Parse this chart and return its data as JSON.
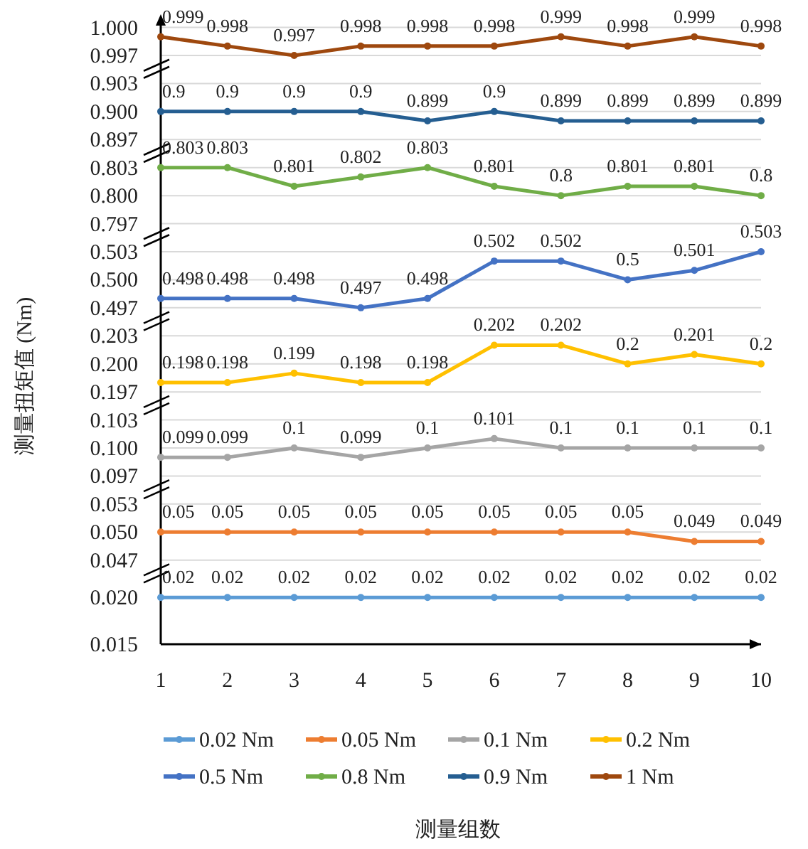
{
  "chart_data": [
    {
      "type": "line",
      "x": [
        1,
        2,
        3,
        4,
        5,
        6,
        7,
        8,
        9,
        10
      ],
      "xlim": [
        1,
        10
      ],
      "ylim": [
        0.9955,
        1.0005
      ],
      "yticks": [
        0.997,
        {
          "value": 1.0,
          "label": "1.000"
        }
      ],
      "grid": "y",
      "marker": "circle",
      "data_labels": true,
      "legend": "bottom",
      "tick_labels": "y",
      "series": [
        {
          "name": "1 Nm",
          "color": "#9e480e",
          "values": [
            0.999,
            0.998,
            0.997,
            0.998,
            0.998,
            0.998,
            0.999,
            0.998,
            0.999,
            0.998
          ]
        }
      ]
    },
    {
      "type": "line",
      "x": [
        1,
        2,
        3,
        4,
        5,
        6,
        7,
        8,
        9,
        10
      ],
      "xlim": [
        1,
        10
      ],
      "ylim": [
        0.8955,
        0.9045
      ],
      "yticks": [
        0.897,
        {
          "value": 0.9,
          "label": "0.900"
        },
        0.903
      ],
      "grid": "y",
      "marker": "circle",
      "data_labels": true,
      "legend": "bottom",
      "tick_labels": "y",
      "series": [
        {
          "name": "0.9 Nm",
          "color": "#255e91",
          "values": [
            0.9,
            0.9,
            0.9,
            0.9,
            0.899,
            0.9,
            0.899,
            0.899,
            0.899,
            0.899
          ]
        }
      ]
    },
    {
      "type": "line",
      "x": [
        1,
        2,
        3,
        4,
        5,
        6,
        7,
        8,
        9,
        10
      ],
      "xlim": [
        1,
        10
      ],
      "ylim": [
        0.7955,
        0.8045
      ],
      "yticks": [
        0.797,
        {
          "value": 0.8,
          "label": "0.800"
        },
        0.803
      ],
      "grid": "y",
      "marker": "circle",
      "data_labels": true,
      "legend": "bottom",
      "tick_labels": "y",
      "series": [
        {
          "name": "0.8 Nm",
          "color": "#70ad47",
          "values": [
            0.803,
            0.803,
            0.801,
            0.802,
            0.803,
            0.801,
            0.8,
            0.801,
            0.801,
            0.8
          ]
        }
      ]
    },
    {
      "type": "line",
      "x": [
        1,
        2,
        3,
        4,
        5,
        6,
        7,
        8,
        9,
        10
      ],
      "xlim": [
        1,
        10
      ],
      "ylim": [
        0.4955,
        0.5045
      ],
      "yticks": [
        0.497,
        {
          "value": 0.5,
          "label": "0.500"
        },
        0.503
      ],
      "grid": "y",
      "marker": "circle",
      "data_labels": true,
      "legend": "bottom",
      "tick_labels": "y",
      "ylabel": "测量扭矩值 (Nm)",
      "series": [
        {
          "name": "0.5 Nm",
          "color": "#4472c4",
          "values": [
            0.498,
            0.498,
            0.498,
            0.497,
            0.498,
            0.502,
            0.502,
            0.5,
            0.501,
            0.503
          ]
        }
      ]
    },
    {
      "type": "line",
      "x": [
        1,
        2,
        3,
        4,
        5,
        6,
        7,
        8,
        9,
        10
      ],
      "xlim": [
        1,
        10
      ],
      "ylim": [
        0.1955,
        0.2045
      ],
      "yticks": [
        0.197,
        {
          "value": 0.2,
          "label": "0.200"
        },
        0.203
      ],
      "grid": "y",
      "marker": "circle",
      "data_labels": true,
      "legend": "bottom",
      "tick_labels": "y",
      "series": [
        {
          "name": "0.2 Nm",
          "color": "#ffc000",
          "values": [
            0.198,
            0.198,
            0.199,
            0.198,
            0.198,
            0.202,
            0.202,
            0.2,
            0.201,
            0.2
          ]
        }
      ]
    },
    {
      "type": "line",
      "x": [
        1,
        2,
        3,
        4,
        5,
        6,
        7,
        8,
        9,
        10
      ],
      "xlim": [
        1,
        10
      ],
      "ylim": [
        0.0955,
        0.1045
      ],
      "yticks": [
        0.097,
        {
          "value": 0.1,
          "label": "0.100"
        },
        0.103
      ],
      "grid": "y",
      "marker": "circle",
      "data_labels": true,
      "legend": "bottom",
      "tick_labels": "y",
      "series": [
        {
          "name": "0.1 Nm",
          "color": "#a5a5a5",
          "values": [
            0.099,
            0.099,
            0.1,
            0.099,
            0.1,
            0.101,
            0.1,
            0.1,
            0.1,
            0.1
          ]
        }
      ]
    },
    {
      "type": "line",
      "x": [
        1,
        2,
        3,
        4,
        5,
        6,
        7,
        8,
        9,
        10
      ],
      "xlim": [
        1,
        10
      ],
      "ylim": [
        0.0455,
        0.0545
      ],
      "yticks": [
        0.047,
        {
          "value": 0.05,
          "label": "0.050"
        },
        0.053
      ],
      "grid": "y",
      "marker": "circle",
      "data_labels": true,
      "legend": "bottom",
      "tick_labels": "y",
      "series": [
        {
          "name": "0.05 Nm",
          "color": "#ed7d31",
          "values": [
            0.05,
            0.05,
            0.05,
            0.05,
            0.05,
            0.05,
            0.05,
            0.05,
            0.049,
            0.049
          ]
        }
      ]
    },
    {
      "type": "line",
      "x": [
        1,
        2,
        3,
        4,
        5,
        6,
        7,
        8,
        9,
        10
      ],
      "xlim": [
        1,
        10
      ],
      "xticks": [
        1,
        2,
        3,
        4,
        5,
        6,
        7,
        8,
        9,
        10
      ],
      "ylim": [
        0.015,
        0.0225
      ],
      "yticks": [
        0.015,
        {
          "value": 0.02,
          "label": "0.020"
        }
      ],
      "marker": "circle",
      "data_labels": true,
      "legend": "bottom",
      "xlabel": "测量组数",
      "series": [
        {
          "name": "0.02 Nm",
          "color": "#5b9bd5",
          "values": [
            0.02,
            0.02,
            0.02,
            0.02,
            0.02,
            0.02,
            0.02,
            0.02,
            0.02,
            0.02
          ]
        }
      ]
    }
  ]
}
